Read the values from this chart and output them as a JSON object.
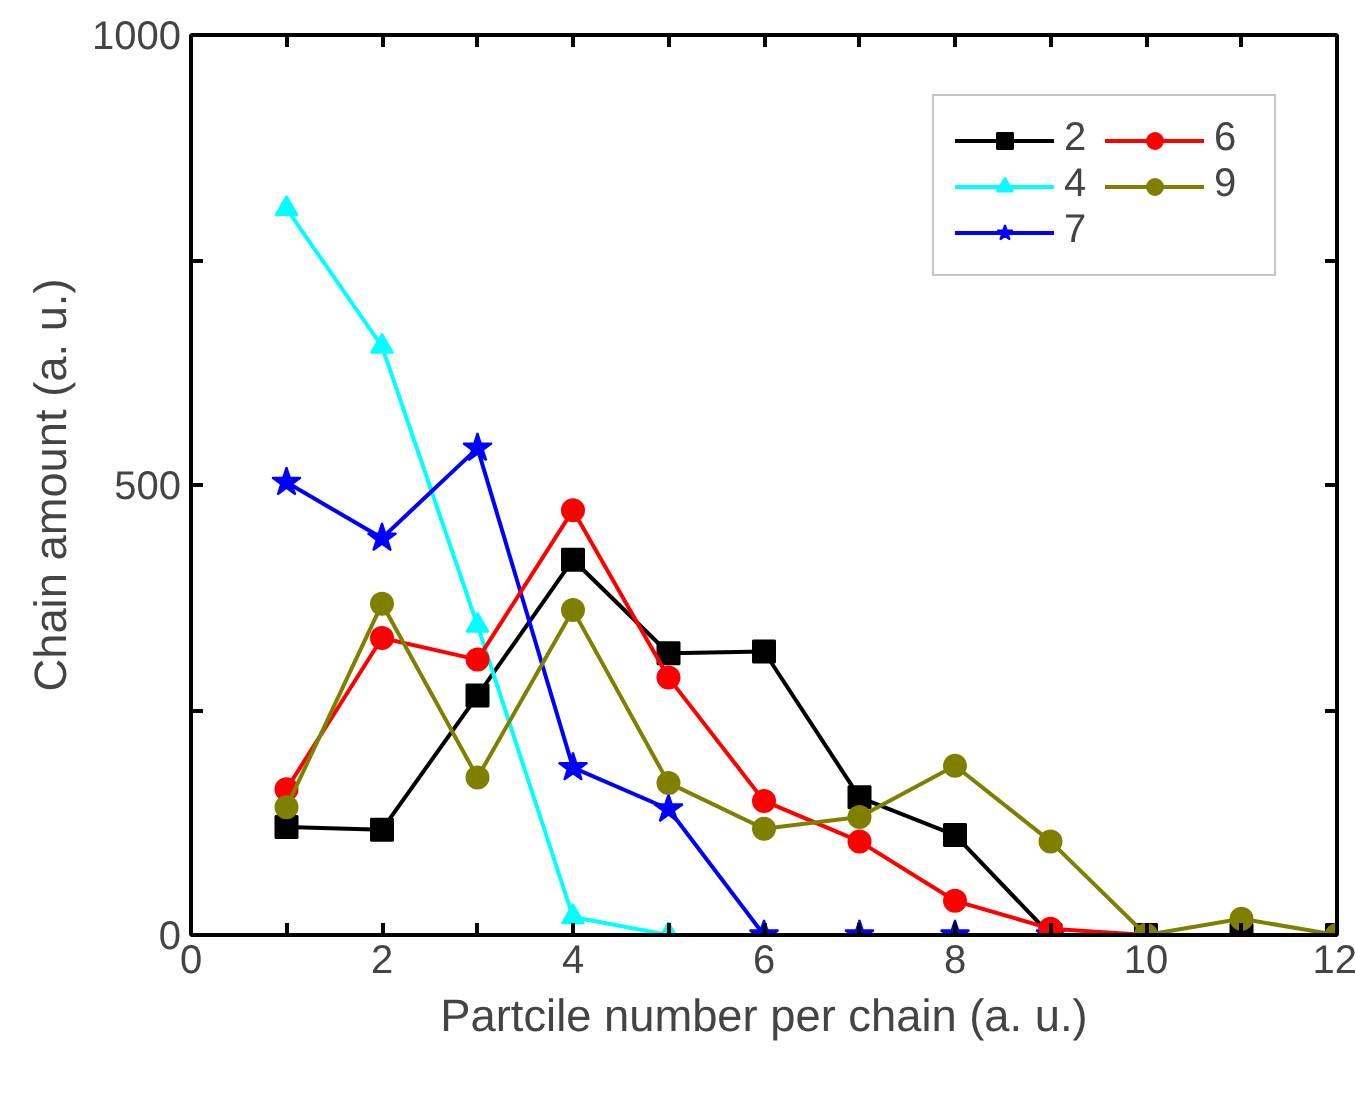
{
  "chart_data": {
    "type": "line",
    "xlabel": "Partcile number per chain (a. u.)",
    "ylabel": "Chain amount (a. u.)",
    "xlim": [
      0,
      12
    ],
    "xticks": [
      0,
      {
        "value": 1,
        "label": null
      },
      2,
      {
        "value": 3,
        "label": null
      },
      4,
      {
        "value": 5,
        "label": null
      },
      6,
      {
        "value": 7,
        "label": null
      },
      8,
      {
        "value": 9,
        "label": null
      },
      10,
      {
        "value": 11,
        "label": null
      },
      12
    ],
    "ylim": [
      0,
      1000
    ],
    "yticks": [
      0,
      {
        "value": 250,
        "label": null
      },
      500,
      {
        "value": 750,
        "label": null
      },
      1000
    ],
    "grid": false,
    "legend": "top right",
    "series": [
      {
        "name": "2",
        "color": "#000000",
        "marker": "square",
        "x": [
          1,
          2,
          3,
          4,
          5,
          6,
          7,
          8,
          9,
          10,
          11,
          12
        ],
        "values": [
          120,
          117,
          266,
          417,
          313,
          315,
          153,
          111,
          0,
          0,
          0,
          0
        ]
      },
      {
        "name": "4",
        "color": "#00ffff",
        "marker": "triangle",
        "x": [
          1,
          2,
          3,
          4,
          5,
          6
        ],
        "values": [
          807,
          654,
          344,
          20,
          0,
          0
        ]
      },
      {
        "name": "7",
        "color": "#0000ff",
        "marker": "star",
        "x": [
          1,
          2,
          3,
          4,
          5,
          6,
          7,
          8,
          9
        ],
        "values": [
          503,
          441,
          541,
          186,
          140,
          0,
          0,
          0,
          0
        ]
      },
      {
        "name": "6",
        "color": "#ff0000",
        "marker": "circle",
        "x": [
          1,
          2,
          3,
          4,
          5,
          6,
          7,
          8,
          9,
          10
        ],
        "values": [
          162,
          330,
          306,
          472,
          286,
          149,
          104,
          38,
          7,
          0
        ]
      },
      {
        "name": "9",
        "color": "#808000",
        "marker": "circle",
        "x": [
          1,
          2,
          3,
          4,
          5,
          6,
          7,
          8,
          9,
          10,
          11,
          12
        ],
        "values": [
          142,
          368,
          175,
          361,
          169,
          118,
          131,
          188,
          104,
          0,
          18,
          0
        ]
      }
    ]
  }
}
